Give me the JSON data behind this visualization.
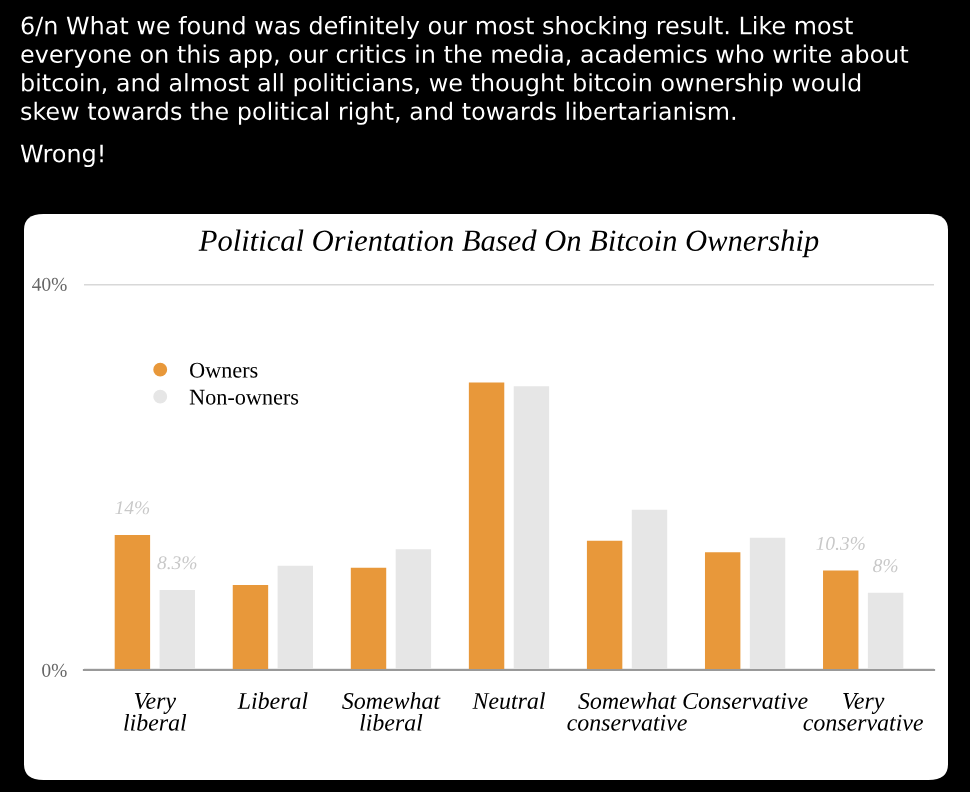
{
  "chart_data": {
    "type": "bar",
    "title": "Political Orientation Based On Bitcoin Ownership",
    "annotations": [
      "6/n What we found was definitely our most shocking result. Like most\neveryone on this app, our critics in the media, academics who write about\nbitcoin, and almost all politicians, we thought bitcoin ownership would\nskew towards the political right, and towards libertarianism.",
      "Wrong!"
    ],
    "categories": [
      "Very\nliberal",
      "Liberal",
      "Somewhat\nliberal",
      "Neutral",
      "Somewhat\nconservative",
      "Conservative",
      "Very\nconservative"
    ],
    "series": [
      {
        "name": "Owners",
        "color": "#e8983a",
        "values": [
          14,
          8.8,
          10.6,
          29.8,
          13.4,
          12.2,
          10.3
        ],
        "value_labels": [
          "14%",
          null,
          null,
          null,
          null,
          null,
          "10.3%"
        ]
      },
      {
        "name": "Non-owners",
        "color": "#e6e6e6",
        "values": [
          8.3,
          10.8,
          12.5,
          29.4,
          16.6,
          13.7,
          8
        ],
        "value_labels": [
          "8.3%",
          null,
          null,
          null,
          null,
          null,
          "8%"
        ]
      }
    ],
    "ylim": [
      0,
      40
    ],
    "yticks": [
      {
        "value": 0,
        "label": "0%"
      },
      {
        "value": 40,
        "label": "40%"
      }
    ],
    "grid": "y",
    "legend": "top left"
  }
}
